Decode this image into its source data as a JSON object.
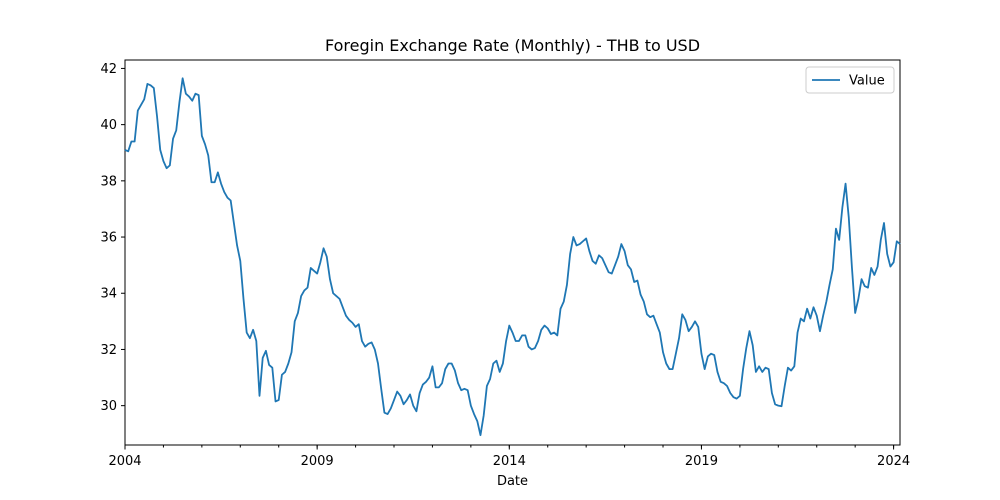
{
  "chart_data": {
    "type": "line",
    "title": "Foregin Exchange Rate (Monthly) - THB to USD",
    "xlabel": "Date",
    "ylabel": "",
    "x_ticks": [
      "2004",
      "2009",
      "2014",
      "2019",
      "2024"
    ],
    "y_ticks": [
      "30",
      "32",
      "34",
      "36",
      "38",
      "40",
      "42"
    ],
    "xlim": [
      "2004-01",
      "2024-03"
    ],
    "ylim": [
      28.6,
      42.3
    ],
    "grid": false,
    "legend_position": "top-right",
    "line_color": "#1f77b4",
    "series": [
      {
        "name": "Value",
        "x_start": "2004-01",
        "frequency": "monthly",
        "values": [
          39.1,
          39.05,
          39.4,
          39.4,
          40.5,
          40.7,
          40.9,
          41.45,
          41.4,
          41.3,
          40.3,
          39.1,
          38.7,
          38.45,
          38.55,
          39.5,
          39.8,
          40.8,
          41.65,
          41.1,
          41.0,
          40.85,
          41.1,
          41.05,
          39.6,
          39.3,
          38.9,
          37.95,
          37.95,
          38.3,
          37.9,
          37.6,
          37.4,
          37.3,
          36.5,
          35.7,
          35.15,
          33.8,
          32.6,
          32.4,
          32.7,
          32.3,
          30.35,
          31.7,
          31.95,
          31.45,
          31.35,
          30.15,
          30.2,
          31.1,
          31.2,
          31.5,
          31.9,
          33.0,
          33.3,
          33.9,
          34.1,
          34.2,
          34.9,
          34.8,
          34.7,
          35.1,
          35.6,
          35.3,
          34.5,
          34.0,
          33.9,
          33.8,
          33.5,
          33.2,
          33.05,
          32.95,
          32.8,
          32.9,
          32.3,
          32.1,
          32.2,
          32.25,
          32.0,
          31.5,
          30.6,
          29.75,
          29.7,
          29.9,
          30.2,
          30.5,
          30.35,
          30.05,
          30.2,
          30.4,
          30.0,
          29.8,
          30.45,
          30.75,
          30.85,
          31.0,
          31.4,
          30.65,
          30.65,
          30.8,
          31.3,
          31.5,
          31.5,
          31.25,
          30.8,
          30.55,
          30.6,
          30.55,
          30.0,
          29.7,
          29.45,
          28.95,
          29.65,
          30.7,
          30.95,
          31.5,
          31.6,
          31.2,
          31.5,
          32.3,
          32.85,
          32.6,
          32.3,
          32.3,
          32.5,
          32.5,
          32.1,
          32.0,
          32.05,
          32.3,
          32.7,
          32.85,
          32.75,
          32.55,
          32.6,
          32.5,
          33.45,
          33.7,
          34.3,
          35.4,
          36.0,
          35.7,
          35.75,
          35.85,
          35.95,
          35.5,
          35.15,
          35.05,
          35.35,
          35.25,
          35.0,
          34.75,
          34.7,
          35.0,
          35.3,
          35.75,
          35.5,
          35.0,
          34.85,
          34.4,
          34.45,
          33.95,
          33.7,
          33.25,
          33.15,
          33.2,
          32.9,
          32.6,
          31.9,
          31.5,
          31.3,
          31.3,
          31.85,
          32.4,
          33.25,
          33.05,
          32.65,
          32.8,
          33.0,
          32.8,
          31.85,
          31.3,
          31.75,
          31.85,
          31.8,
          31.2,
          30.85,
          30.8,
          30.7,
          30.45,
          30.3,
          30.25,
          30.35,
          31.3,
          32.05,
          32.65,
          32.15,
          31.2,
          31.4,
          31.2,
          31.35,
          31.3,
          30.45,
          30.05,
          30.0,
          29.98,
          30.7,
          31.35,
          31.25,
          31.4,
          32.6,
          33.1,
          33.0,
          33.45,
          33.1,
          33.5,
          33.2,
          32.65,
          33.2,
          33.7,
          34.3,
          34.85,
          36.3,
          35.9,
          37.05,
          37.9,
          36.7,
          34.9,
          33.3,
          33.8,
          34.5,
          34.25,
          34.2,
          34.9,
          34.65,
          34.95,
          35.9,
          36.5,
          35.4,
          34.95,
          35.1,
          35.85,
          35.75
        ]
      }
    ]
  }
}
